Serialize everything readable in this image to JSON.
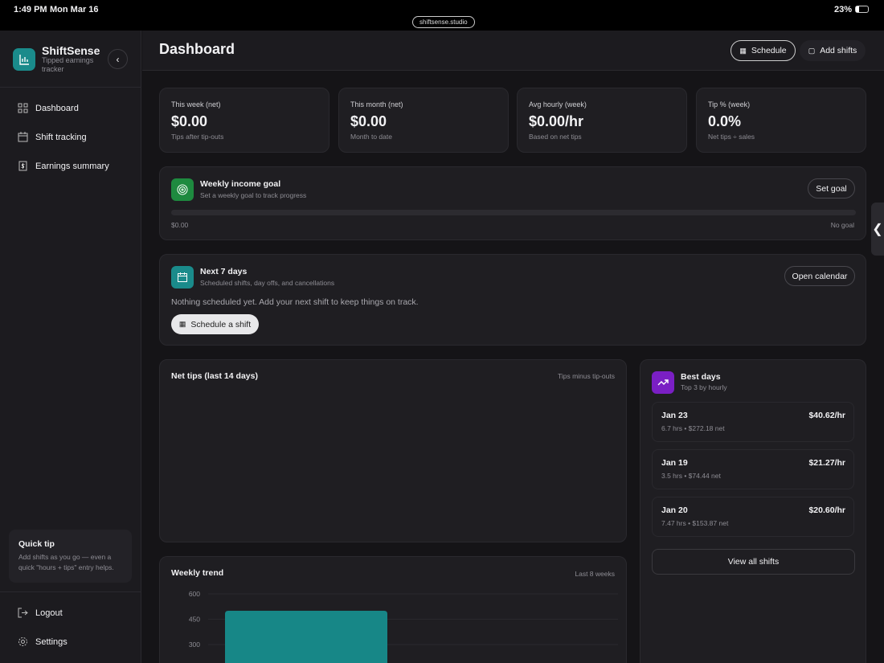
{
  "status": {
    "time": "1:49 PM",
    "date": "Mon Mar 16",
    "url": "shiftsense.studio",
    "battery": "23%"
  },
  "sidebar": {
    "app_name": "ShiftSense",
    "tagline": "Tipped earnings tracker",
    "items": [
      {
        "label": "Dashboard",
        "icon": "grid-icon"
      },
      {
        "label": "Shift tracking",
        "icon": "calendar-icon"
      },
      {
        "label": "Earnings summary",
        "icon": "dollar-doc-icon"
      }
    ],
    "tip": {
      "title": "Quick tip",
      "text": "Add shifts as you go — even a quick \"hours + tips\" entry helps."
    },
    "logout": "Logout",
    "settings": "Settings"
  },
  "header": {
    "title": "Dashboard",
    "schedule": "Schedule",
    "add_shifts": "Add shifts"
  },
  "stats": [
    {
      "label": "This week (net)",
      "value": "$0.00",
      "sub": "Tips after tip-outs"
    },
    {
      "label": "This month (net)",
      "value": "$0.00",
      "sub": "Month to date"
    },
    {
      "label": "Avg hourly (week)",
      "value": "$0.00/hr",
      "sub": "Based on net tips"
    },
    {
      "label": "Tip % (week)",
      "value": "0.0%",
      "sub": "Net tips ÷ sales"
    }
  ],
  "goal": {
    "title": "Weekly income goal",
    "subtitle": "Set a weekly goal to track progress",
    "button": "Set goal",
    "current": "$0.00",
    "target": "No goal",
    "progress": 0
  },
  "next7": {
    "title": "Next 7 days",
    "subtitle": "Scheduled shifts, day offs, and cancellations",
    "button": "Open calendar",
    "empty": "Nothing scheduled yet. Add your next shift to keep things on track.",
    "cta": "Schedule a shift"
  },
  "net_tips": {
    "title": "Net tips (last 14 days)",
    "note": "Tips minus tip-outs"
  },
  "best": {
    "title": "Best days",
    "subtitle": "Top 3 by hourly",
    "rows": [
      {
        "date": "Jan 23",
        "rate": "$40.62/hr",
        "meta": "6.7 hrs  •  $272.18 net"
      },
      {
        "date": "Jan 19",
        "rate": "$21.27/hr",
        "meta": "3.5 hrs  •  $74.44 net"
      },
      {
        "date": "Jan 20",
        "rate": "$20.60/hr",
        "meta": "7.47 hrs  •  $153.87 net"
      }
    ],
    "button": "View all shifts"
  },
  "chart_data": {
    "type": "bar",
    "title": "Weekly trend",
    "note": "Last 8 weeks",
    "yticks": [
      600,
      450,
      300
    ],
    "values": [
      500
    ],
    "color": "#178787"
  }
}
